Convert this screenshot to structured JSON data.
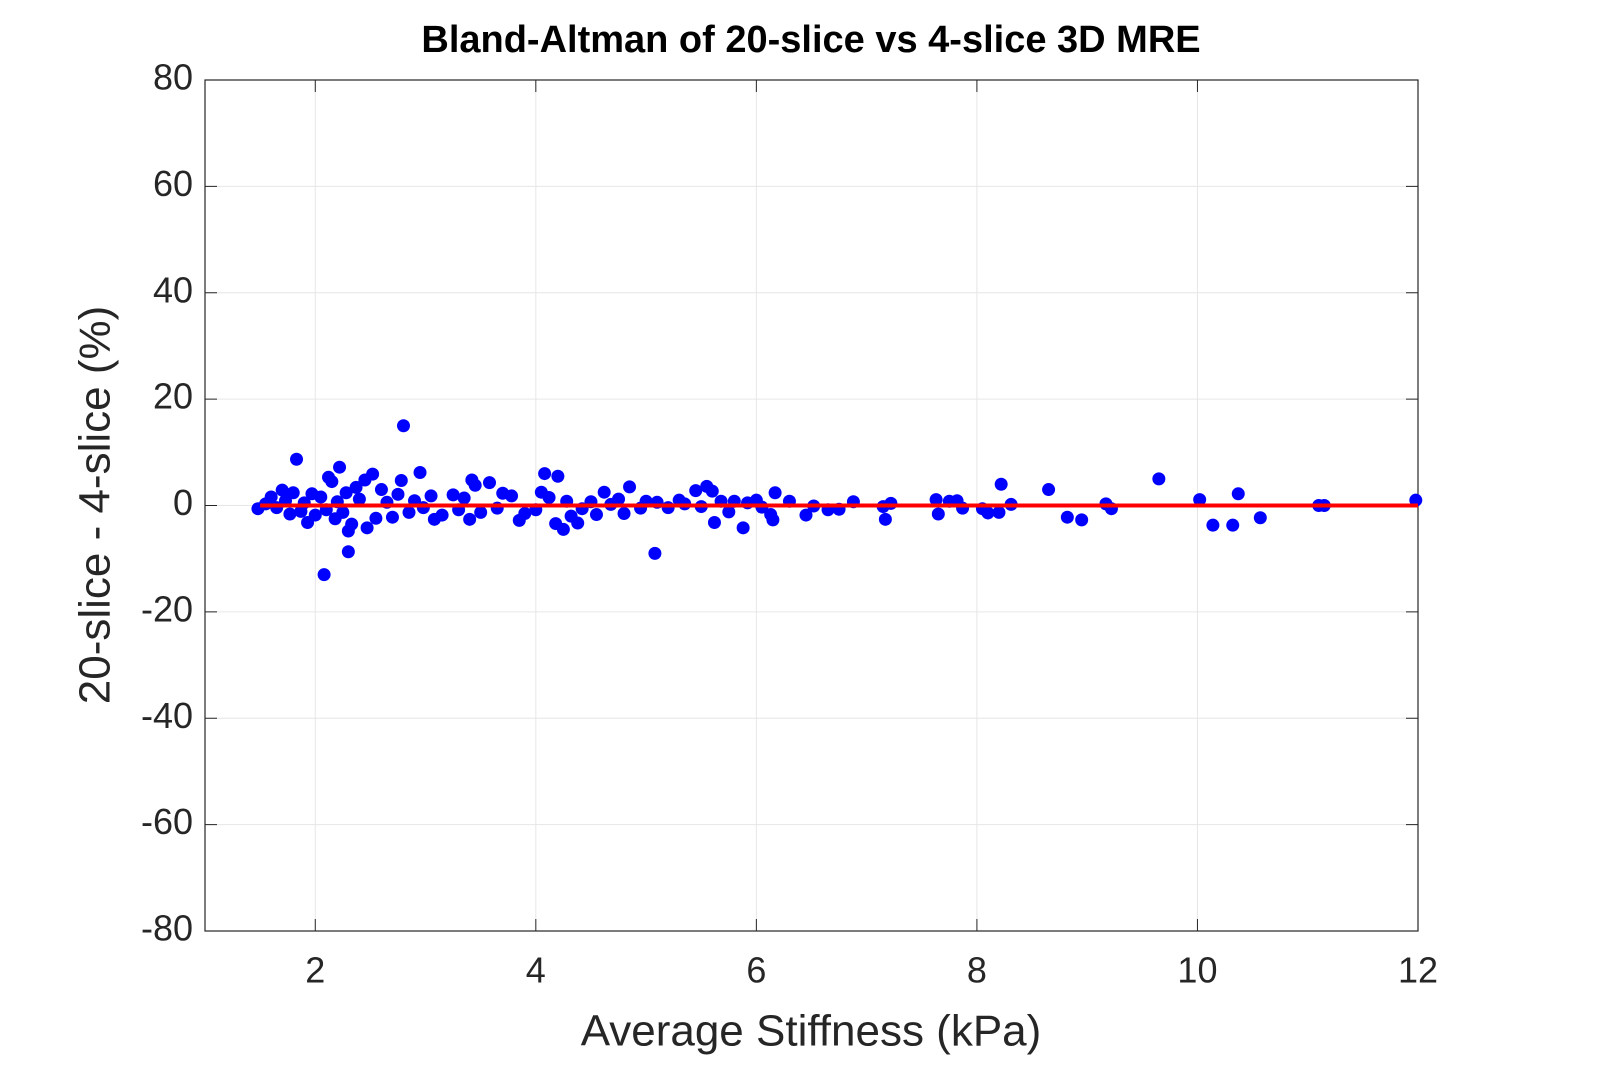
{
  "chart_data": {
    "type": "scatter",
    "title": "Bland-Altman of 20-slice vs 4-slice 3D MRE",
    "xlabel": "Average Stiffness (kPa)",
    "ylabel": "20-slice - 4-slice (%)",
    "xlim": [
      1,
      12
    ],
    "ylim": [
      -80,
      80
    ],
    "xticks": [
      2,
      4,
      6,
      8,
      10,
      12
    ],
    "yticks": [
      -80,
      -60,
      -40,
      -20,
      0,
      20,
      40,
      60,
      80
    ],
    "grid": true,
    "series": [
      {
        "type": "scatter",
        "color": "#0000ff",
        "x": [
          2.8,
          1.83,
          2.08,
          2.3,
          5.08,
          9.65,
          8.22,
          8.65,
          11.98,
          11.1,
          11.15,
          10.57,
          10.32,
          10.37,
          10.14,
          10.02,
          9.22,
          9.17,
          8.95,
          8.82,
          8.31,
          8.2,
          8.1,
          8.05,
          7.87,
          7.82,
          7.75,
          7.65,
          7.63,
          7.22,
          7.17,
          7.15,
          6.88,
          6.75,
          6.65,
          6.52,
          6.45,
          6.3,
          6.17,
          6.15,
          6.13,
          6.05,
          6.0,
          5.92,
          5.88,
          5.8,
          5.75,
          5.68,
          5.62,
          5.6,
          5.55,
          5.5,
          5.45,
          5.35,
          5.3,
          5.2,
          5.1,
          5.0,
          4.95,
          4.85,
          4.8,
          4.75,
          4.68,
          4.62,
          4.55,
          4.5,
          4.42,
          4.38,
          4.32,
          4.28,
          4.25,
          4.2,
          4.18,
          4.08,
          4.12,
          4.05,
          4.0,
          3.9,
          3.85,
          3.78,
          3.7,
          3.65,
          3.58,
          3.5,
          3.45,
          3.42,
          3.4,
          3.35,
          3.3,
          3.25,
          3.15,
          3.08,
          3.05,
          2.98,
          2.95,
          2.9,
          2.85,
          2.78,
          2.75,
          2.7,
          2.65,
          2.6,
          2.55,
          2.52,
          2.47,
          2.45,
          2.4,
          2.37,
          2.33,
          2.3,
          2.28,
          2.25,
          2.22,
          2.2,
          2.18,
          2.15,
          2.12,
          2.1,
          2.05,
          2.0,
          1.97,
          1.93,
          1.9,
          1.87,
          1.8,
          1.77,
          1.73,
          1.7,
          1.65,
          1.6,
          1.55,
          1.48
        ],
        "values": [
          15,
          8.7,
          -13,
          -8.7,
          -9,
          5,
          4,
          3,
          1,
          0,
          0,
          -2.3,
          -3.7,
          2.2,
          -3.7,
          1.1,
          -0.6,
          0.3,
          -2.7,
          -2.2,
          0.2,
          -1.3,
          -1.4,
          -0.6,
          -0.5,
          0.9,
          0.8,
          -1.6,
          1.1,
          0.4,
          -2.6,
          -0.2,
          0.7,
          -0.7,
          -0.8,
          -0.1,
          -1.8,
          0.8,
          2.4,
          -2.7,
          -1.7,
          -0.3,
          1.0,
          0.5,
          -4.2,
          0.8,
          -1.2,
          0.8,
          -3.2,
          2.7,
          3.6,
          -0.2,
          2.8,
          0.3,
          1.0,
          -0.4,
          0.6,
          0.8,
          -0.5,
          3.5,
          -1.5,
          1.2,
          0.2,
          2.5,
          -1.7,
          0.7,
          -0.6,
          -3.3,
          -2.0,
          0.8,
          -4.5,
          5.5,
          -3.4,
          6,
          1.5,
          2.5,
          -0.8,
          -1.5,
          -2.8,
          1.8,
          2.3,
          -0.5,
          4.3,
          -1.3,
          3.8,
          4.8,
          -2.6,
          1.4,
          -0.8,
          2.0,
          -1.8,
          -2.6,
          1.8,
          -0.4,
          6.2,
          0.9,
          -1.3,
          4.7,
          2.1,
          -2.2,
          0.6,
          3.0,
          -2.4,
          5.9,
          -4.2,
          4.8,
          1.2,
          3.4,
          -3.5,
          -4.8,
          2.4,
          -1.3,
          7.2,
          0.7,
          -2.5,
          4.5,
          5.3,
          -0.8,
          1.6,
          -1.8,
          2.2,
          -3.2,
          0.5,
          -1.1,
          2.4,
          -1.6,
          0.9,
          2.9,
          -0.4,
          1.6,
          0.3,
          -0.6
        ]
      },
      {
        "type": "line",
        "color": "#ff0000",
        "x": [
          1.5,
          12
        ],
        "values": [
          0,
          0
        ]
      }
    ]
  }
}
